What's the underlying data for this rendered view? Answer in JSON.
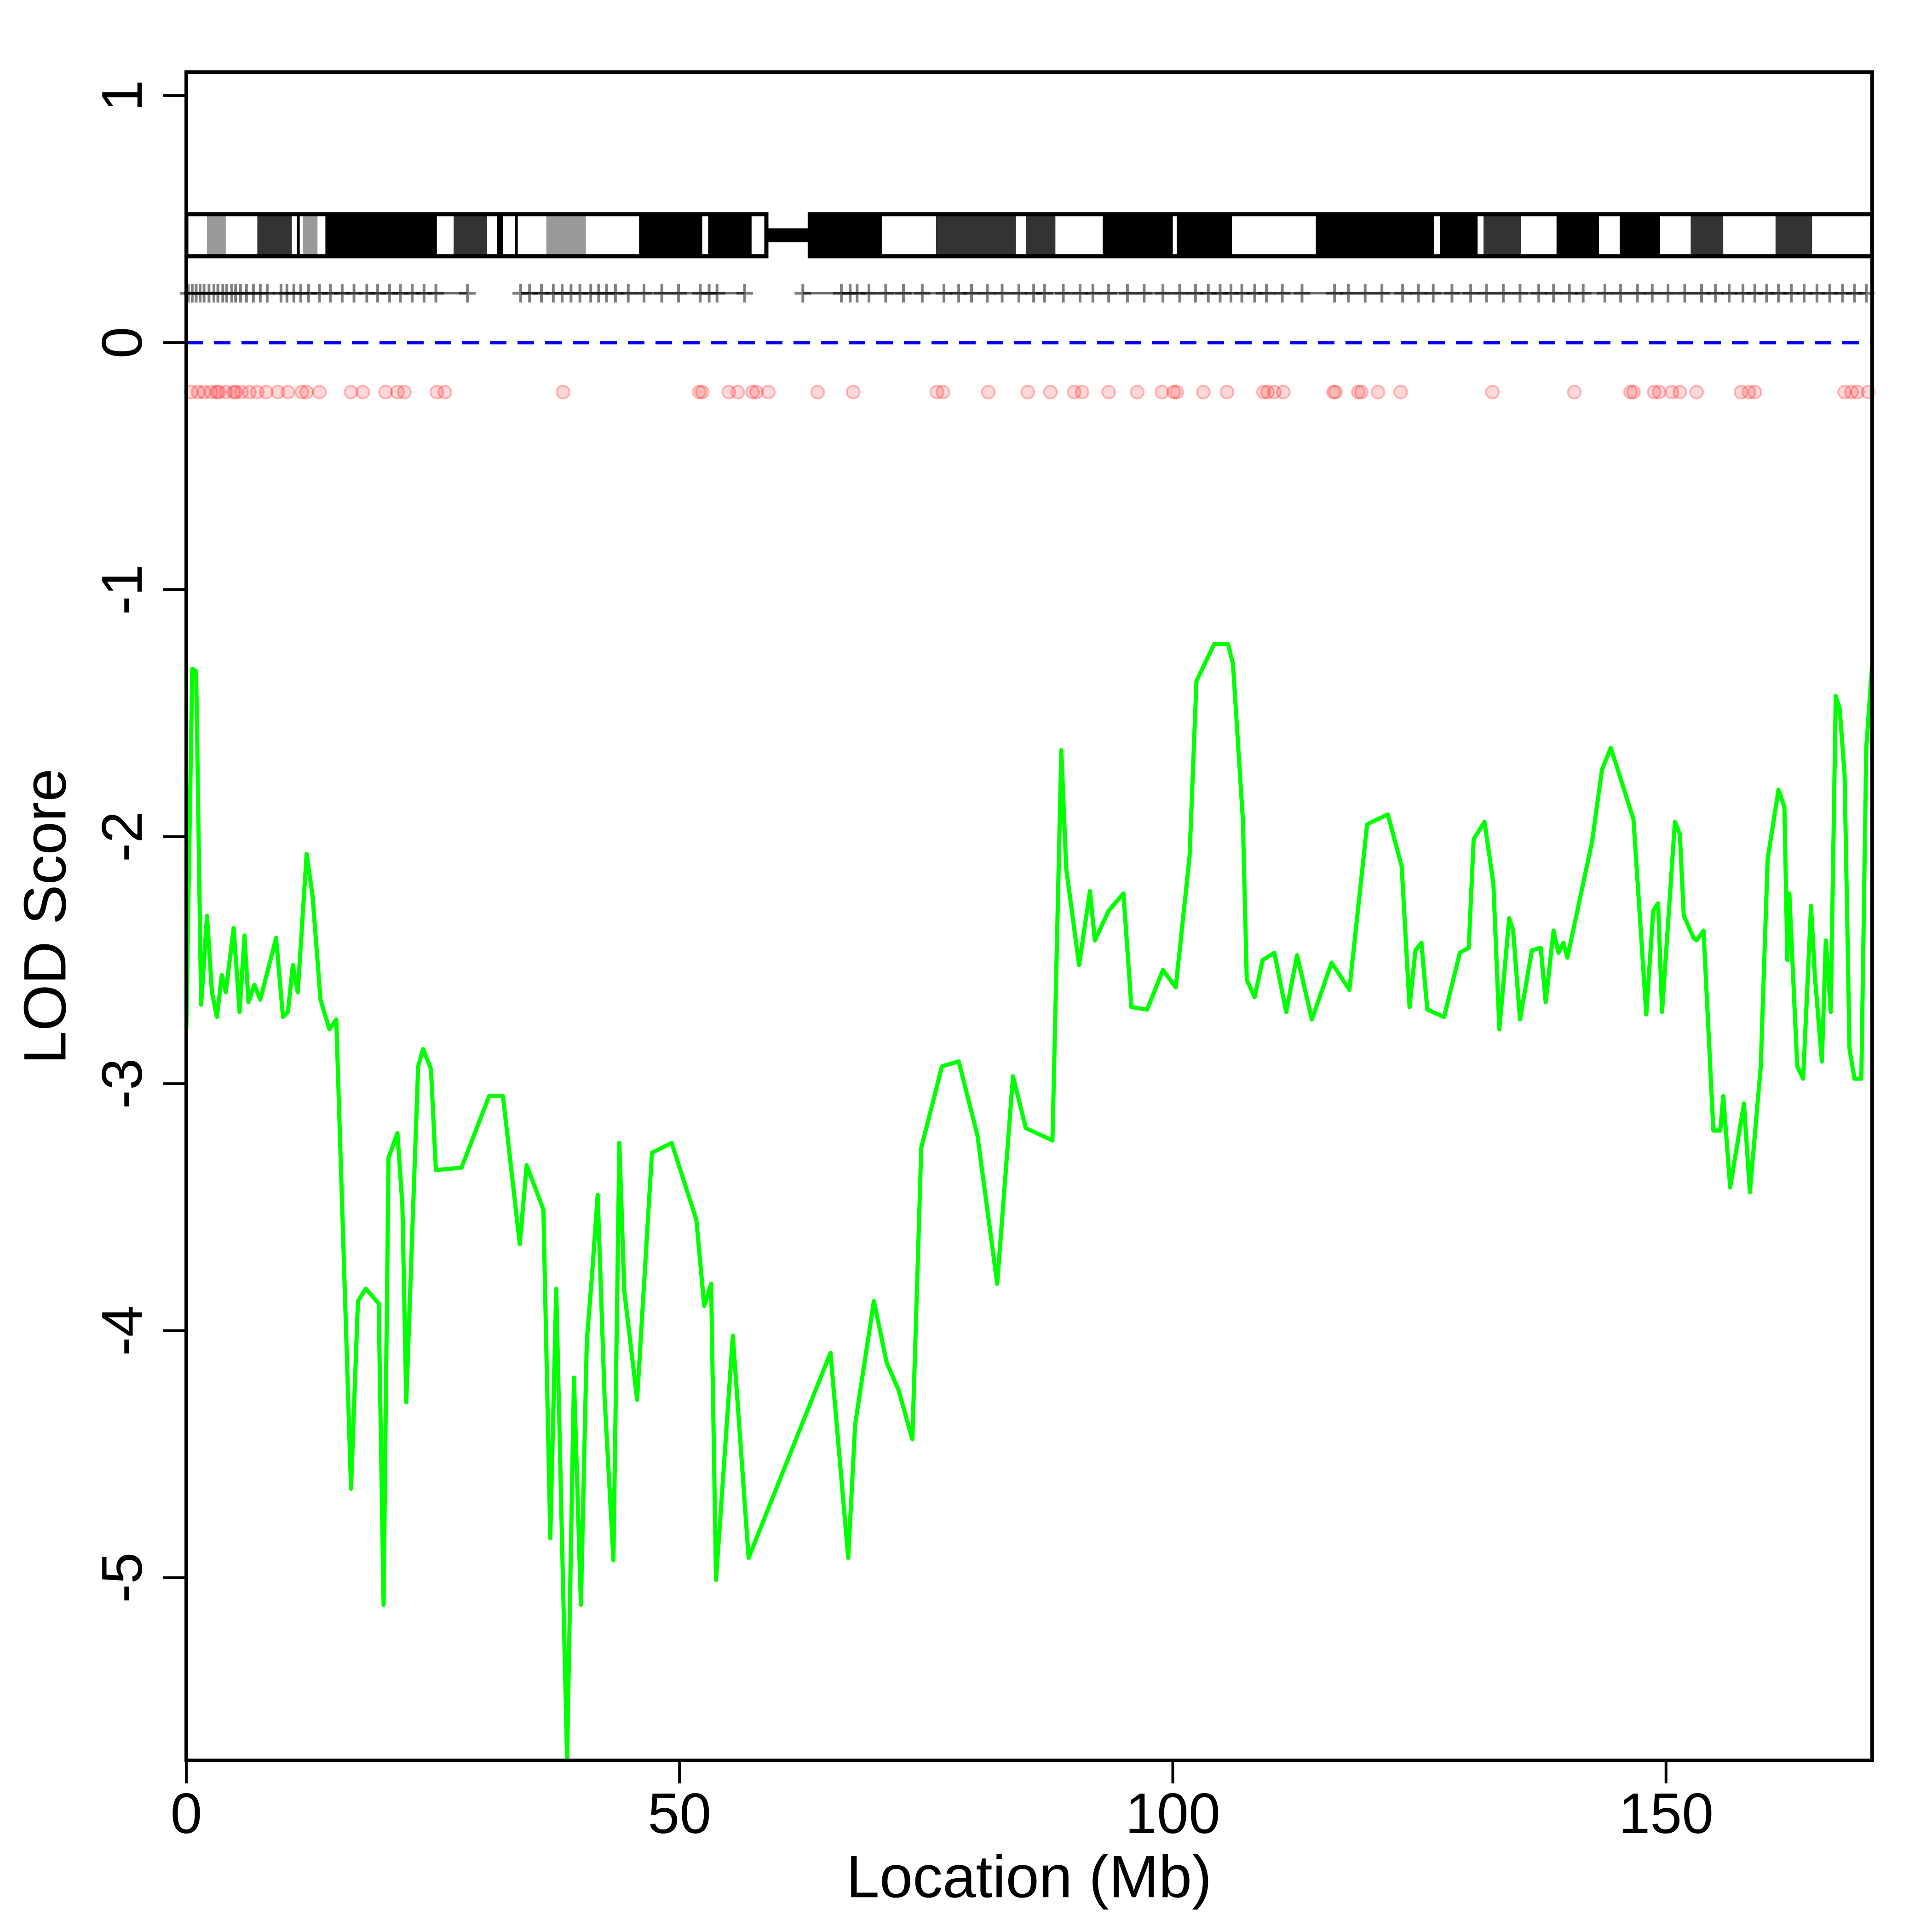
{
  "chart_data": {
    "type": "line",
    "xlabel": "Location (Mb)",
    "ylabel": "LOD Score",
    "xlim": [
      0,
      170.9
    ],
    "ylim": [
      -5.74,
      1.095
    ],
    "xticks": [
      0,
      50,
      100,
      150
    ],
    "yticks": [
      -5,
      -4,
      -3,
      -2,
      -1,
      0,
      1
    ],
    "line": {
      "color": "#00ff00",
      "x": [
        0,
        0.6,
        1.0,
        1.5,
        2.1,
        2.6,
        3.1,
        3.6,
        4.0,
        4.8,
        5.4,
        5.9,
        6.3,
        6.9,
        7.5,
        9.1,
        9.8,
        10.3,
        10.8,
        11.3,
        12.2,
        12.8,
        13.6,
        14.5,
        15.2,
        16.7,
        17.4,
        18.2,
        19.5,
        20.0,
        20.5,
        21.4,
        21.9,
        22.3,
        23.5,
        24.0,
        24.8,
        25.3,
        27.9,
        30.7,
        32.1,
        33.8,
        34.5,
        36.2,
        36.9,
        37.5,
        38.6,
        39.3,
        40.0,
        40.6,
        41.1,
        41.7,
        42.4,
        43.3,
        43.9,
        44.4,
        45.7,
        47.2,
        49.2,
        51.7,
        52.5,
        53.2,
        53.7,
        55.4,
        57.0,
        65.3,
        67.1,
        67.8,
        69.7,
        71.0,
        72.2,
        73.6,
        74.5,
        76.6,
        78.3,
        80.2,
        82.2,
        83.8,
        85.1,
        87.8,
        88.7,
        89.2,
        90.5,
        91.6,
        92.1,
        93.5,
        95.0,
        95.8,
        97.4,
        99.0,
        100.3,
        101.7,
        102.4,
        104.2,
        105.6,
        106.1,
        107.1,
        107.5,
        108.3,
        109.1,
        110.3,
        111.5,
        112.6,
        114.1,
        116.1,
        117.9,
        119.7,
        121.8,
        123.2,
        124.0,
        124.6,
        125.2,
        125.8,
        127.5,
        129.1,
        130.0,
        130.5,
        131.6,
        132.5,
        133.1,
        134.1,
        134.5,
        135.2,
        136.4,
        137.3,
        137.8,
        138.6,
        139.1,
        139.6,
        140.0,
        142.5,
        143.5,
        144.4,
        146.7,
        148.0,
        148.7,
        149.2,
        149.6,
        150.9,
        151.4,
        151.8,
        152.8,
        153.1,
        153.8,
        154.8,
        155.5,
        155.8,
        156.5,
        157.9,
        158.5,
        159.6,
        160.3,
        161.4,
        162.0,
        162.3,
        162.5,
        163.3,
        163.9,
        164.7,
        165.1,
        165.8,
        166.2,
        166.7,
        167.2,
        167.6,
        168.1,
        168.6,
        169.1,
        169.8,
        170.3,
        170.9
      ],
      "y": [
        -2.78,
        -1.32,
        -1.33,
        -2.68,
        -2.32,
        -2.63,
        -2.73,
        -2.56,
        -2.63,
        -2.37,
        -2.71,
        -2.4,
        -2.67,
        -2.6,
        -2.66,
        -2.41,
        -2.73,
        -2.71,
        -2.52,
        -2.63,
        -2.07,
        -2.24,
        -2.66,
        -2.78,
        -2.74,
        -4.64,
        -3.88,
        -3.83,
        -3.89,
        -5.11,
        -3.3,
        -3.2,
        -3.49,
        -4.29,
        -2.93,
        -2.86,
        -2.94,
        -3.35,
        -3.34,
        -3.05,
        -3.05,
        -3.65,
        -3.33,
        -3.51,
        -4.84,
        -3.83,
        -5.74,
        -4.19,
        -5.11,
        -4.04,
        -3.79,
        -3.45,
        -4.27,
        -4.93,
        -3.24,
        -3.84,
        -4.28,
        -3.28,
        -3.24,
        -3.55,
        -3.9,
        -3.81,
        -5.01,
        -4.02,
        -4.92,
        -4.09,
        -4.92,
        -4.38,
        -3.88,
        -4.13,
        -4.24,
        -4.44,
        -3.26,
        -2.93,
        -2.91,
        -3.21,
        -3.81,
        -2.97,
        -3.18,
        -3.23,
        -1.65,
        -2.13,
        -2.52,
        -2.22,
        -2.42,
        -2.3,
        -2.23,
        -2.69,
        -2.7,
        -2.54,
        -2.61,
        -2.08,
        -1.37,
        -1.22,
        -1.22,
        -1.3,
        -1.93,
        -2.58,
        -2.65,
        -2.5,
        -2.47,
        -2.71,
        -2.48,
        -2.74,
        -2.51,
        -2.62,
        -1.95,
        -1.91,
        -2.12,
        -2.69,
        -2.46,
        -2.43,
        -2.7,
        -2.73,
        -2.47,
        -2.45,
        -2.01,
        -1.94,
        -2.19,
        -2.78,
        -2.33,
        -2.38,
        -2.74,
        -2.46,
        -2.45,
        -2.67,
        -2.38,
        -2.47,
        -2.43,
        -2.49,
        -2.02,
        -1.73,
        -1.64,
        -1.93,
        -2.72,
        -2.3,
        -2.27,
        -2.71,
        -1.94,
        -1.99,
        -2.32,
        -2.41,
        -2.42,
        -2.38,
        -3.19,
        -3.19,
        -3.05,
        -3.42,
        -3.08,
        -3.44,
        -2.93,
        -2.09,
        -1.81,
        -1.88,
        -2.5,
        -2.23,
        -2.93,
        -2.98,
        -2.28,
        -2.57,
        -2.91,
        -2.42,
        -2.71,
        -1.43,
        -1.48,
        -1.75,
        -2.86,
        -2.98,
        -2.98,
        -1.64,
        -1.3
      ]
    },
    "threshold": {
      "value": 0,
      "color": "#0000ff"
    },
    "ideogram": {
      "ymin": 0.35,
      "ymax": 0.52,
      "arms": [
        {
          "start": 0,
          "end": 58.8
        },
        {
          "start": 63.2,
          "end": 170.9
        }
      ],
      "bands": [
        {
          "start": 2.1,
          "end": 4.0,
          "color": "#999999"
        },
        {
          "start": 7.2,
          "end": 10.7,
          "color": "#333333"
        },
        {
          "start": 11.2,
          "end": 11.5,
          "color": "#000000"
        },
        {
          "start": 11.8,
          "end": 13.3,
          "color": "#999999"
        },
        {
          "start": 14.1,
          "end": 25.4,
          "color": "#000000"
        },
        {
          "start": 27.1,
          "end": 30.5,
          "color": "#333333"
        },
        {
          "start": 31.5,
          "end": 32.1,
          "color": "#000000"
        },
        {
          "start": 33.3,
          "end": 33.6,
          "color": "#000000"
        },
        {
          "start": 36.5,
          "end": 40.5,
          "color": "#999999"
        },
        {
          "start": 45.9,
          "end": 52.3,
          "color": "#000000"
        },
        {
          "start": 52.9,
          "end": 57.3,
          "color": "#000000"
        },
        {
          "start": 63.2,
          "end": 70.5,
          "color": "#000000"
        },
        {
          "start": 76.0,
          "end": 84.1,
          "color": "#333333"
        },
        {
          "start": 85.1,
          "end": 88.1,
          "color": "#333333"
        },
        {
          "start": 92.9,
          "end": 100.0,
          "color": "#000000"
        },
        {
          "start": 100.4,
          "end": 106.0,
          "color": "#000000"
        },
        {
          "start": 114.5,
          "end": 126.5,
          "color": "#000000"
        },
        {
          "start": 127.1,
          "end": 130.9,
          "color": "#000000"
        },
        {
          "start": 131.5,
          "end": 135.3,
          "color": "#333333"
        },
        {
          "start": 138.9,
          "end": 143.2,
          "color": "#000000"
        },
        {
          "start": 145.3,
          "end": 149.4,
          "color": "#000000"
        },
        {
          "start": 152.5,
          "end": 155.8,
          "color": "#333333"
        },
        {
          "start": 161.1,
          "end": 164.8,
          "color": "#333333"
        }
      ]
    },
    "markers": {
      "y": 0.2,
      "color": "#000000",
      "x": [
        0.2,
        0.6,
        1.0,
        1.4,
        1.8,
        2.3,
        2.8,
        3.2,
        3.7,
        4.1,
        4.6,
        5.0,
        5.5,
        6.1,
        6.8,
        7.5,
        8.2,
        9.6,
        10.2,
        10.9,
        11.6,
        12.4,
        13.5,
        14.6,
        15.8,
        17.0,
        18.3,
        19.4,
        20.6,
        21.7,
        22.9,
        24.1,
        25.3,
        28.5,
        33.9,
        34.8,
        36.0,
        37.2,
        38.1,
        39.0,
        39.9,
        41.0,
        41.8,
        42.6,
        43.5,
        44.8,
        46.4,
        48.2,
        49.9,
        52.1,
        53.0,
        53.8,
        56.6,
        62.5,
        66.4,
        67.3,
        68.0,
        69.2,
        70.9,
        72.7,
        74.6,
        76.8,
        78.3,
        79.6,
        81.2,
        82.7,
        84.4,
        85.9,
        87.0,
        88.9,
        90.6,
        91.9,
        93.5,
        95.4,
        97.1,
        99.0,
        100.7,
        102.3,
        103.6,
        104.8,
        105.9,
        107.0,
        108.3,
        109.5,
        111.1,
        113.1,
        116.4,
        117.8,
        119.5,
        121.2,
        123.3,
        124.9,
        126.4,
        128.3,
        130.2,
        131.8,
        133.5,
        135.2,
        137.1,
        138.6,
        140.2,
        141.6,
        143.8,
        145.4,
        147.1,
        148.6,
        150.2,
        151.9,
        153.6,
        155.0,
        156.4,
        157.8,
        159.0,
        160.2,
        161.4,
        162.7,
        164.0,
        165.3,
        166.6,
        167.9,
        169.1,
        170.3
      ]
    },
    "density": {
      "y": -0.2,
      "color": "#ff0000",
      "x": [
        0.5,
        1.2,
        1.8,
        2.5,
        3.1,
        3.3,
        4.0,
        4.8,
        5.0,
        5.6,
        6.4,
        7.2,
        8.1,
        9.3,
        10.3,
        11.7,
        12.2,
        13.5,
        16.7,
        17.9,
        20.2,
        21.4,
        22.1,
        25.4,
        26.2,
        38.2,
        52.0,
        52.3,
        55.0,
        55.9,
        57.4,
        57.8,
        59.0,
        64.0,
        67.6,
        76.1,
        76.7,
        81.3,
        85.3,
        87.6,
        90.0,
        90.8,
        93.5,
        96.4,
        98.9,
        100.1,
        100.4,
        103.1,
        105.5,
        109.2,
        109.6,
        110.3,
        111.2,
        116.3,
        116.5,
        118.8,
        119.1,
        120.8,
        123.1,
        132.4,
        140.7,
        146.4,
        146.7,
        148.8,
        149.3,
        150.6,
        151.4,
        153.1,
        157.6,
        158.4,
        159.0,
        168.1,
        168.8,
        169.4,
        170.5
      ]
    }
  }
}
